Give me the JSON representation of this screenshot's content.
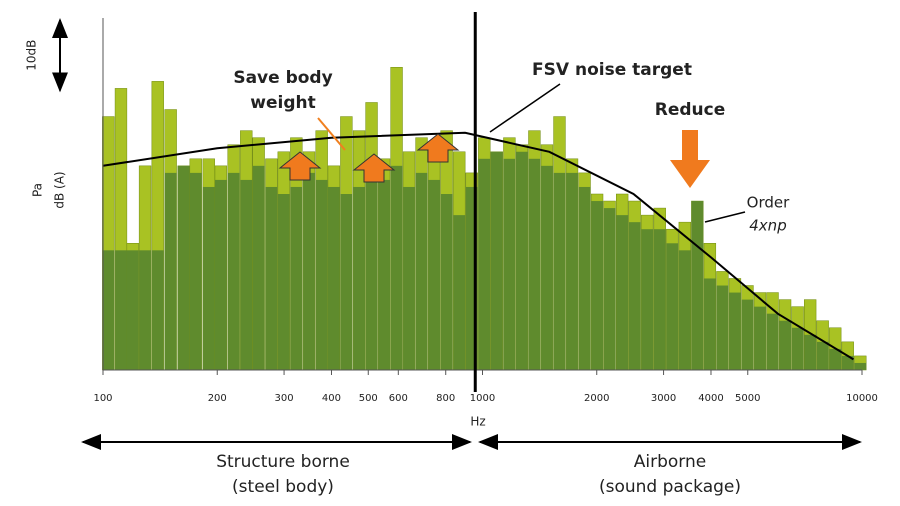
{
  "chart_data": {
    "type": "bar",
    "xlabel": "Hz",
    "ylabel": [
      "Pa",
      "dB (A)"
    ],
    "xscale": "log",
    "xlim": [
      100,
      10000
    ],
    "xticks": [
      100,
      200,
      300,
      400,
      500,
      600,
      800,
      1000,
      2000,
      3000,
      4000,
      5000,
      10000
    ],
    "ylim": [
      0,
      50
    ],
    "scale_bar": {
      "label": "10dB",
      "value": 10
    },
    "divider_x": 957,
    "x": [
      100,
      108,
      116,
      125,
      135,
      146,
      158,
      170,
      184,
      198,
      214,
      231,
      249,
      269,
      290,
      313,
      338,
      365,
      393,
      424,
      458,
      494,
      533,
      575,
      620,
      669,
      722,
      779,
      841,
      907,
      979,
      1056,
      1140,
      1230,
      1327,
      1432,
      1545,
      1667,
      1799,
      1941,
      2094,
      2260,
      2438,
      2631,
      2839,
      3063,
      3305,
      3566,
      3848,
      4152,
      4480,
      4834,
      5216,
      5628,
      6073,
      6553,
      7071,
      7629,
      8232,
      8882,
      9584
    ],
    "series": [
      {
        "color": "#a9c223",
        "values": [
          36,
          40,
          18,
          29,
          41,
          37,
          29,
          30,
          30,
          29,
          32,
          34,
          33,
          30,
          31,
          33,
          31,
          34,
          29,
          36,
          34,
          38,
          30,
          43,
          31,
          33,
          30,
          34,
          31,
          28,
          33,
          31,
          33,
          32,
          34,
          32,
          36,
          30,
          28,
          25,
          24,
          25,
          24,
          22,
          23,
          20,
          21,
          24,
          18,
          14,
          13,
          12,
          11,
          11,
          10,
          9,
          10,
          7,
          6,
          4,
          2
        ]
      },
      {
        "color": "#5f8b2d",
        "values": [
          17,
          17,
          17,
          17,
          17,
          28,
          29,
          28,
          26,
          27,
          28,
          27,
          29,
          26,
          25,
          26,
          28,
          27,
          26,
          25,
          26,
          27,
          27,
          29,
          26,
          28,
          27,
          25,
          22,
          26,
          30,
          31,
          30,
          31,
          30,
          29,
          28,
          28,
          26,
          24,
          23,
          22,
          21,
          20,
          20,
          18,
          17,
          24,
          13,
          12,
          11,
          10,
          9,
          8,
          7,
          6,
          5,
          4,
          3,
          2,
          1
        ]
      }
    ],
    "target": {
      "name": "FSV noise target",
      "x": [
        100,
        200,
        400,
        900,
        1500,
        2500,
        4000,
        6000,
        9500
      ],
      "values": [
        29,
        31.5,
        33,
        33.7,
        31,
        25,
        16,
        8,
        1.5
      ]
    },
    "annotations": [
      "Save body",
      "weight",
      "Reduce",
      "Order",
      "4xnp"
    ],
    "regions": [
      "Structure borne",
      "(steel body)",
      "Airborne",
      "(sound package)"
    ]
  }
}
